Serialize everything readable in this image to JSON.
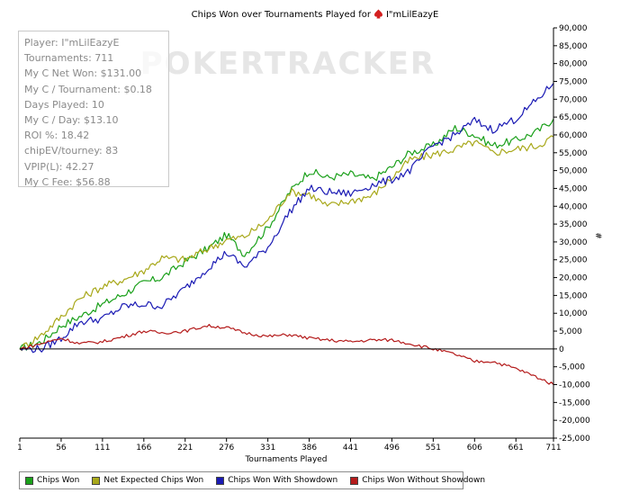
{
  "title": {
    "prefix": "Chips Won over Tournaments Played for",
    "player": "I\"mLilEazyE"
  },
  "watermark": "POKERTRACKER",
  "stats": [
    "Player: I\"mLilEazyE",
    "Tournaments: 711",
    "My C Net Won: $131.00",
    "My C / Tournament: $0.18",
    "Days Played: 10",
    "My C / Day: $13.10",
    "ROI %: 18.42",
    "chipEV/tourney: 83",
    "VPIP(L): 42.27",
    "My C Fee: $56.88"
  ],
  "colors": {
    "chips_won": "#1aa01a",
    "net_expected": "#a8a81a",
    "showdown": "#1a1ab4",
    "without_showdown": "#b41a1a",
    "axis": "#000000",
    "watermark": "#e6e6e6"
  },
  "chart_data": {
    "type": "line",
    "title": "Chips Won over Tournaments Played for I\"mLilEazyE",
    "xlabel": "Tournaments Played",
    "ylabel": "#",
    "xlim": [
      1,
      711
    ],
    "ylim": [
      -25000,
      90000
    ],
    "x_ticks": [
      1,
      56,
      111,
      166,
      221,
      276,
      331,
      386,
      441,
      496,
      551,
      606,
      661,
      711
    ],
    "y_ticks": [
      -25000,
      -20000,
      -15000,
      -10000,
      -5000,
      0,
      5000,
      10000,
      15000,
      20000,
      25000,
      30000,
      35000,
      40000,
      45000,
      50000,
      55000,
      60000,
      65000,
      70000,
      75000,
      80000,
      85000,
      90000
    ],
    "y_tick_labels": [
      "-25,000",
      "-20,000",
      "-15,000",
      "-10,000",
      "-5,000",
      "0",
      "5,000",
      "10,000",
      "15,000",
      "20,000",
      "25,000",
      "30,000",
      "35,000",
      "40,000",
      "45,000",
      "50,000",
      "55,000",
      "60,000",
      "65,000",
      "70,000",
      "75,000",
      "80,000",
      "85,000",
      "90,000"
    ],
    "legend_position": "bottom-left",
    "series": [
      {
        "name": "Chips Won",
        "color": "#1aa01a",
        "x": [
          1,
          30,
          56,
          80,
          111,
          140,
          166,
          190,
          221,
          250,
          276,
          300,
          331,
          360,
          386,
          410,
          441,
          470,
          496,
          520,
          551,
          580,
          606,
          630,
          661,
          690,
          711
        ],
        "y": [
          0,
          2000,
          6500,
          9000,
          12500,
          15500,
          18500,
          20000,
          24500,
          28000,
          32000,
          26500,
          34000,
          44000,
          50000,
          48000,
          49000,
          47500,
          51000,
          55000,
          57000,
          62000,
          60000,
          57000,
          58500,
          61000,
          64500
        ]
      },
      {
        "name": "Net Expected Chips Won",
        "color": "#a8a81a",
        "x": [
          1,
          30,
          56,
          80,
          111,
          140,
          166,
          190,
          221,
          250,
          276,
          300,
          331,
          360,
          386,
          410,
          441,
          470,
          496,
          520,
          551,
          580,
          606,
          630,
          661,
          690,
          711
        ],
        "y": [
          0,
          4000,
          9000,
          14000,
          17500,
          19500,
          22000,
          25500,
          25000,
          28000,
          30500,
          31500,
          36000,
          44000,
          43500,
          40000,
          41500,
          43000,
          48000,
          53000,
          54500,
          56000,
          58000,
          55000,
          56000,
          57000,
          59500
        ]
      },
      {
        "name": "Chips Won With Showdown",
        "color": "#1a1ab4",
        "x": [
          1,
          30,
          56,
          80,
          111,
          140,
          166,
          190,
          221,
          250,
          276,
          300,
          331,
          360,
          386,
          410,
          441,
          470,
          496,
          520,
          551,
          580,
          606,
          630,
          661,
          690,
          711
        ],
        "y": [
          0,
          0,
          3000,
          7500,
          8500,
          12000,
          12500,
          12000,
          17000,
          22500,
          27000,
          23000,
          28500,
          38500,
          45000,
          44000,
          43500,
          46000,
          47500,
          50000,
          57000,
          60000,
          64000,
          61500,
          64500,
          70000,
          74500
        ]
      },
      {
        "name": "Chips Won Without Showdown",
        "color": "#b41a1a",
        "x": [
          1,
          30,
          56,
          80,
          111,
          140,
          166,
          190,
          221,
          250,
          276,
          300,
          331,
          360,
          386,
          410,
          441,
          470,
          496,
          520,
          551,
          580,
          606,
          630,
          661,
          690,
          711
        ],
        "y": [
          0,
          1500,
          3000,
          1500,
          2000,
          3500,
          5000,
          4500,
          5000,
          6500,
          6000,
          4500,
          3500,
          4000,
          3000,
          2500,
          2000,
          2500,
          2500,
          1500,
          0,
          -1500,
          -3500,
          -3500,
          -5500,
          -8000,
          -10000
        ]
      }
    ]
  }
}
